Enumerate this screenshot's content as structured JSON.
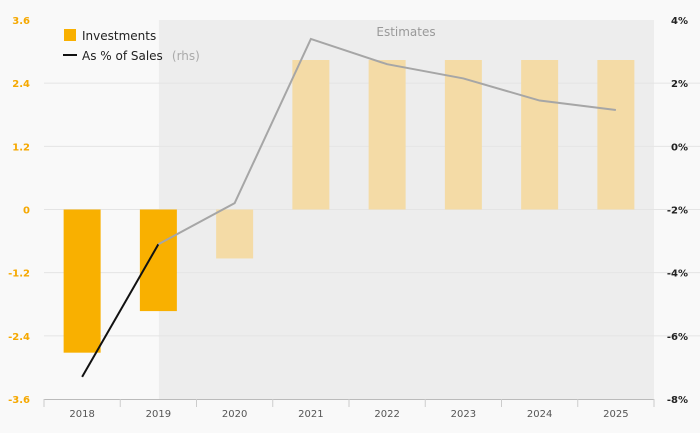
{
  "chart_data": {
    "type": "bar",
    "categories": [
      "2018",
      "2019",
      "2020",
      "2021",
      "2022",
      "2023",
      "2024",
      "2025"
    ],
    "series": [
      {
        "name": "Investments",
        "axis": "left",
        "type": "bar",
        "values": [
          -2.72,
          -1.93,
          -0.93,
          2.84,
          2.84,
          2.84,
          2.84,
          2.84
        ]
      },
      {
        "name": "As % of Sales",
        "name_suffix": "(rhs)",
        "axis": "right",
        "type": "line",
        "values": [
          -7.3,
          -3.1,
          -1.8,
          3.4,
          2.6,
          2.15,
          1.45,
          1.15
        ]
      }
    ],
    "estimates_from": "2020",
    "estimates_label": "Estimates",
    "ylim_left": [
      -3.6,
      3.6
    ],
    "yticks_left": [
      "3.6",
      "2.4",
      "1.2",
      "0",
      "-1.2",
      "-2.4",
      "-3.6"
    ],
    "ylim_right": [
      -8,
      4
    ],
    "yticks_right": [
      "4%",
      "2%",
      "0%",
      "-2%",
      "-4%",
      "-6%",
      "-8%"
    ],
    "legend_position": "top-left",
    "grid": true,
    "colors": {
      "actual_bar": "#f9b000",
      "estimate_bar": "#f4dba6",
      "actual_line": "#111111",
      "estimate_line": "#a6a6a6",
      "estimate_bg": "#ededed"
    }
  }
}
